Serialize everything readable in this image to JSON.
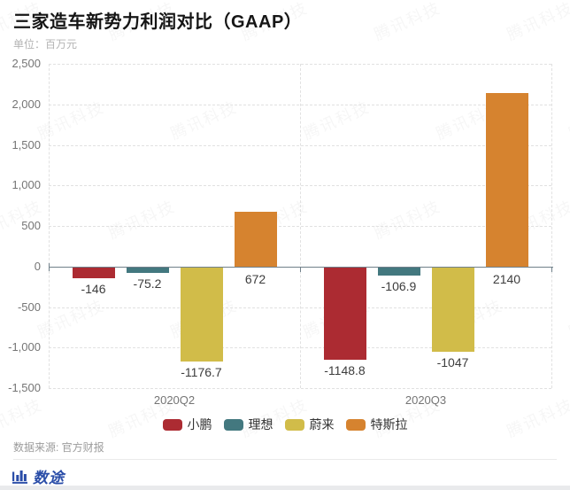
{
  "header": {
    "title": "三家造车新势力利润对比（GAAP）",
    "unit_label": "单位：百万元"
  },
  "chart_data": {
    "type": "bar",
    "title": "三家造车新势力利润对比（GAAP）",
    "unit": "百万元",
    "categories": [
      "2020Q2",
      "2020Q3"
    ],
    "series": [
      {
        "name": "小鹏",
        "slug": "xpeng",
        "color": "#ac2b32",
        "values": [
          -146,
          -1148.8
        ],
        "labels": [
          "-146",
          "-1148.8"
        ]
      },
      {
        "name": "理想",
        "slug": "li-auto",
        "color": "#43787f",
        "values": [
          -75.2,
          -106.9
        ],
        "labels": [
          "-75.2",
          "-106.9"
        ]
      },
      {
        "name": "蔚来",
        "slug": "nio",
        "color": "#d1bc49",
        "values": [
          -1176.7,
          -1047
        ],
        "labels": [
          "-1176.7",
          "-1047"
        ]
      },
      {
        "name": "特斯拉",
        "slug": "tesla",
        "color": "#d6832f",
        "values": [
          672,
          2140
        ],
        "labels": [
          "672",
          "2140"
        ]
      }
    ],
    "ylim": [
      -1500,
      2500
    ],
    "ytick_values": [
      2500,
      2000,
      1500,
      1000,
      500,
      0,
      -500,
      -1000,
      -1500
    ],
    "ytick_labels": [
      "2,500",
      "2,000",
      "1,500",
      "1,000",
      "500",
      "0",
      "-500",
      "-1,000",
      "-1,500"
    ],
    "grid": true,
    "legend_position": "bottom"
  },
  "footer": {
    "source_label": "数据来源: 官方财报",
    "logo_text": "数途"
  },
  "watermark": {
    "text": "腾讯科技"
  }
}
